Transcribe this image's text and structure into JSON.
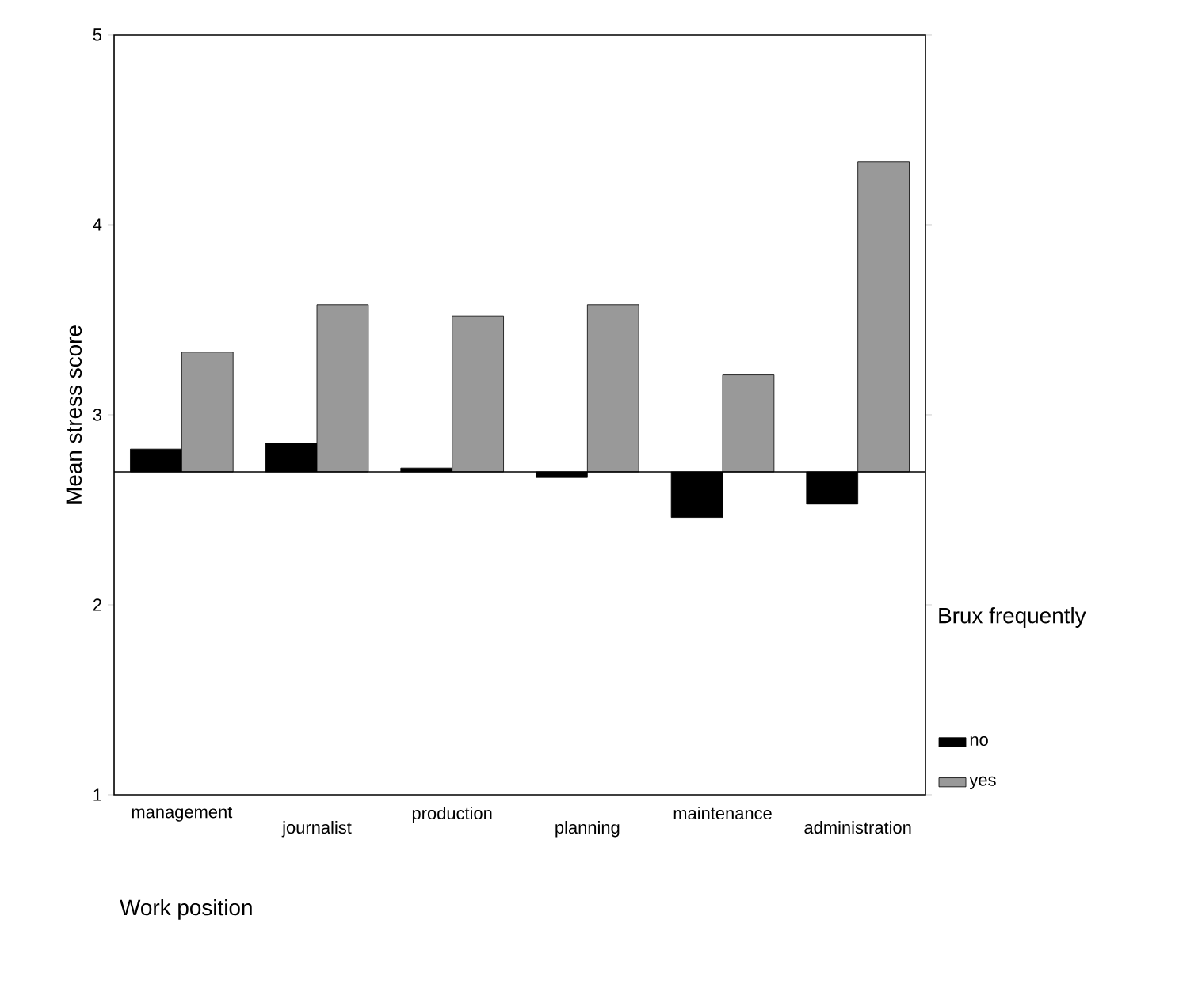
{
  "chart_data": {
    "type": "bar",
    "xlabel": "Work position",
    "ylabel": "Mean stress score",
    "legend_title": "Brux frequently",
    "categories": [
      "management",
      "journalist",
      "production",
      "planning",
      "maintenance",
      "administration"
    ],
    "series": [
      {
        "name": "no",
        "color": "#000000",
        "base": [
          2.7,
          2.7,
          2.7,
          2.7,
          2.7,
          2.7
        ],
        "values": [
          0.12,
          0.15,
          0.02,
          -0.03,
          -0.24,
          -0.17
        ]
      },
      {
        "name": "yes",
        "color": "#999999",
        "base": [
          2.7,
          2.7,
          2.7,
          2.7,
          2.7,
          2.7
        ],
        "values": [
          0.63,
          0.88,
          0.82,
          0.88,
          0.51,
          1.63
        ]
      }
    ],
    "ylim": [
      1,
      5
    ],
    "yticks": [
      1,
      2,
      3,
      4,
      5
    ],
    "ref_lines": [
      {
        "axis": "y",
        "value": 2.7
      }
    ],
    "legend": "right",
    "grid": false
  }
}
